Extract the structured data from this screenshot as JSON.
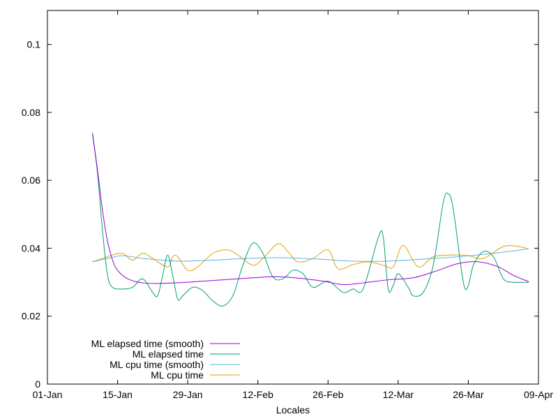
{
  "chart_data": {
    "type": "line",
    "title": "",
    "xlabel": "Locales",
    "ylabel": "",
    "x_scale": "date",
    "xlim": [
      "2019-01-01",
      "2019-04-09"
    ],
    "ylim": [
      0,
      0.11
    ],
    "x_ticks": [
      {
        "value": "2019-01-01",
        "label": "01-Jan"
      },
      {
        "value": "2019-01-15",
        "label": "15-Jan"
      },
      {
        "value": "2019-01-29",
        "label": "29-Jan"
      },
      {
        "value": "2019-02-12",
        "label": "12-Feb"
      },
      {
        "value": "2019-02-26",
        "label": "26-Feb"
      },
      {
        "value": "2019-03-12",
        "label": "12-Mar"
      },
      {
        "value": "2019-03-26",
        "label": "26-Mar"
      },
      {
        "value": "2019-04-09",
        "label": "09-Apr"
      }
    ],
    "y_ticks": [
      {
        "value": 0,
        "label": "0"
      },
      {
        "value": 0.02,
        "label": "0.02"
      },
      {
        "value": 0.04,
        "label": "0.04"
      },
      {
        "value": 0.06,
        "label": "0.06"
      },
      {
        "value": 0.08,
        "label": "0.08"
      },
      {
        "value": 0.1,
        "label": "0.1"
      }
    ],
    "grid": false,
    "legend_position": "bottom-left",
    "series": [
      {
        "name": "ML elapsed time (smooth)",
        "color": "#9400d3",
        "points": [
          [
            "2019-01-10",
            0.0735
          ],
          [
            "2019-01-11",
            0.063
          ],
          [
            "2019-01-12",
            0.051
          ],
          [
            "2019-01-13",
            0.042
          ],
          [
            "2019-01-14",
            0.0365
          ],
          [
            "2019-01-15",
            0.0335
          ],
          [
            "2019-01-17",
            0.031
          ],
          [
            "2019-01-20",
            0.0298
          ],
          [
            "2019-01-25",
            0.0297
          ],
          [
            "2019-02-01",
            0.0303
          ],
          [
            "2019-02-08",
            0.031
          ],
          [
            "2019-02-15",
            0.0316
          ],
          [
            "2019-02-20",
            0.0312
          ],
          [
            "2019-02-25",
            0.0303
          ],
          [
            "2019-03-01",
            0.0293
          ],
          [
            "2019-03-05",
            0.0298
          ],
          [
            "2019-03-10",
            0.0307
          ],
          [
            "2019-03-15",
            0.0313
          ],
          [
            "2019-03-20",
            0.0335
          ],
          [
            "2019-03-24",
            0.0355
          ],
          [
            "2019-03-28",
            0.036
          ],
          [
            "2019-04-01",
            0.0345
          ],
          [
            "2019-04-04",
            0.032
          ],
          [
            "2019-04-07",
            0.0302
          ]
        ]
      },
      {
        "name": "ML elapsed time",
        "color": "#009e73",
        "points": [
          [
            "2019-01-10",
            0.074
          ],
          [
            "2019-01-11",
            0.062
          ],
          [
            "2019-01-12",
            0.045
          ],
          [
            "2019-01-13",
            0.032
          ],
          [
            "2019-01-14",
            0.0285
          ],
          [
            "2019-01-16",
            0.028
          ],
          [
            "2019-01-18",
            0.0285
          ],
          [
            "2019-01-20",
            0.031
          ],
          [
            "2019-01-22",
            0.027
          ],
          [
            "2019-01-23",
            0.026
          ],
          [
            "2019-01-24",
            0.032
          ],
          [
            "2019-01-25",
            0.038
          ],
          [
            "2019-01-26",
            0.032
          ],
          [
            "2019-01-27",
            0.025
          ],
          [
            "2019-01-28",
            0.026
          ],
          [
            "2019-01-30",
            0.0285
          ],
          [
            "2019-02-01",
            0.0275
          ],
          [
            "2019-02-03",
            0.0245
          ],
          [
            "2019-02-05",
            0.023
          ],
          [
            "2019-02-07",
            0.026
          ],
          [
            "2019-02-09",
            0.035
          ],
          [
            "2019-02-11",
            0.0415
          ],
          [
            "2019-02-13",
            0.0385
          ],
          [
            "2019-02-15",
            0.0315
          ],
          [
            "2019-02-17",
            0.031
          ],
          [
            "2019-02-19",
            0.0335
          ],
          [
            "2019-02-21",
            0.0325
          ],
          [
            "2019-02-23",
            0.0285
          ],
          [
            "2019-02-26",
            0.0303
          ],
          [
            "2019-02-29",
            0.027
          ],
          [
            "2019-03-03",
            0.028
          ],
          [
            "2019-03-05",
            0.028
          ],
          [
            "2019-03-08",
            0.043
          ],
          [
            "2019-03-09",
            0.0435
          ],
          [
            "2019-03-10",
            0.028
          ],
          [
            "2019-03-11",
            0.029
          ],
          [
            "2019-03-12",
            0.0325
          ],
          [
            "2019-03-14",
            0.0285
          ],
          [
            "2019-03-15",
            0.026
          ],
          [
            "2019-03-17",
            0.027
          ],
          [
            "2019-03-19",
            0.035
          ],
          [
            "2019-03-21",
            0.0535
          ],
          [
            "2019-03-22",
            0.056
          ],
          [
            "2019-03-23",
            0.0515
          ],
          [
            "2019-03-25",
            0.03
          ],
          [
            "2019-03-26",
            0.029
          ],
          [
            "2019-03-27",
            0.035
          ],
          [
            "2019-03-29",
            0.039
          ],
          [
            "2019-03-31",
            0.0375
          ],
          [
            "2019-04-02",
            0.031
          ],
          [
            "2019-04-04",
            0.03
          ],
          [
            "2019-04-07",
            0.03
          ]
        ]
      },
      {
        "name": "ML cpu time (smooth)",
        "color": "#56b4e9",
        "points": [
          [
            "2019-01-10",
            0.036
          ],
          [
            "2019-01-13",
            0.037
          ],
          [
            "2019-01-16",
            0.0378
          ],
          [
            "2019-01-20",
            0.037
          ],
          [
            "2019-01-27",
            0.0362
          ],
          [
            "2019-02-03",
            0.0365
          ],
          [
            "2019-02-10",
            0.037
          ],
          [
            "2019-02-17",
            0.0372
          ],
          [
            "2019-02-24",
            0.0368
          ],
          [
            "2019-03-03",
            0.0362
          ],
          [
            "2019-03-10",
            0.0362
          ],
          [
            "2019-03-17",
            0.0368
          ],
          [
            "2019-03-24",
            0.0375
          ],
          [
            "2019-03-31",
            0.0385
          ],
          [
            "2019-04-07",
            0.0398
          ]
        ]
      },
      {
        "name": "ML cpu time",
        "color": "#e69f00",
        "points": [
          [
            "2019-01-10",
            0.036
          ],
          [
            "2019-01-12",
            0.037
          ],
          [
            "2019-01-14",
            0.038
          ],
          [
            "2019-01-16",
            0.0385
          ],
          [
            "2019-01-18",
            0.0365
          ],
          [
            "2019-01-20",
            0.0385
          ],
          [
            "2019-01-22",
            0.037
          ],
          [
            "2019-01-25",
            0.0345
          ],
          [
            "2019-01-26",
            0.0375
          ],
          [
            "2019-01-27",
            0.0375
          ],
          [
            "2019-01-29",
            0.0335
          ],
          [
            "2019-01-31",
            0.0345
          ],
          [
            "2019-02-03",
            0.0385
          ],
          [
            "2019-02-06",
            0.0395
          ],
          [
            "2019-02-08",
            0.038
          ],
          [
            "2019-02-11",
            0.035
          ],
          [
            "2019-02-13",
            0.037
          ],
          [
            "2019-02-16",
            0.0413
          ],
          [
            "2019-02-18",
            0.039
          ],
          [
            "2019-02-20",
            0.036
          ],
          [
            "2019-02-23",
            0.037
          ],
          [
            "2019-02-26",
            0.0395
          ],
          [
            "2019-02-28",
            0.034
          ],
          [
            "2019-03-03",
            0.0352
          ],
          [
            "2019-03-06",
            0.036
          ],
          [
            "2019-03-09",
            0.035
          ],
          [
            "2019-03-11",
            0.0345
          ],
          [
            "2019-03-13",
            0.0408
          ],
          [
            "2019-03-16",
            0.0345
          ],
          [
            "2019-03-19",
            0.0375
          ],
          [
            "2019-03-23",
            0.038
          ],
          [
            "2019-03-26",
            0.0378
          ],
          [
            "2019-03-29",
            0.037
          ],
          [
            "2019-04-02",
            0.0405
          ],
          [
            "2019-04-05",
            0.0405
          ],
          [
            "2019-04-07",
            0.0398
          ]
        ]
      }
    ]
  }
}
